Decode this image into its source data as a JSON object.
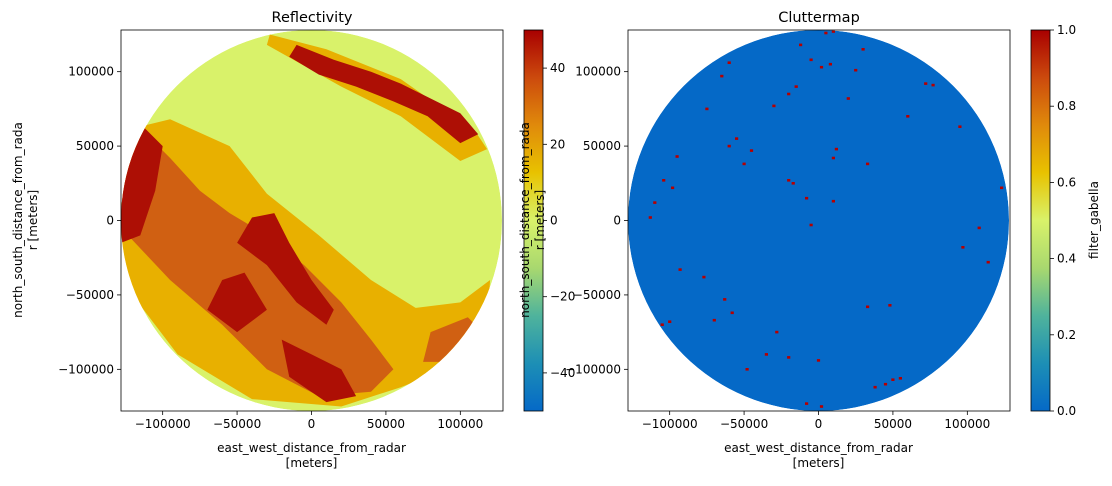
{
  "chart_data": [
    {
      "type": "heatmap",
      "title": "Reflectivity",
      "xlabel": "east_west_distance_from_radar\n[meters]",
      "ylabel": "north_south_distance_from_rada\nr [meters]",
      "x_ticks": [
        -100000,
        -50000,
        0,
        50000,
        100000
      ],
      "y_ticks": [
        100000,
        50000,
        0,
        -50000,
        -100000
      ],
      "xlim": [
        -128000,
        128000
      ],
      "ylim": [
        -128000,
        128000
      ],
      "radar_range": 128000,
      "colorbar": {
        "min": -50,
        "max": 50,
        "ticks": [
          40,
          20,
          0,
          -20,
          -40
        ],
        "colormap": [
          "#0569c7",
          "#1d8fb5",
          "#4fb39c",
          "#a8d86f",
          "#d9f26a",
          "#e8c200",
          "#e08a0b",
          "#cc4a0d",
          "#a80000"
        ],
        "label": ""
      },
      "field_colors": {
        "background": "#d9f26a",
        "moderate": "#e8b000",
        "strong": "#d06012",
        "intense": "#ad0f05"
      },
      "echo_regions": [
        {
          "intensity": "moderate",
          "points": [
            [
              -128000,
              60000
            ],
            [
              -95000,
              68000
            ],
            [
              -55000,
              50000
            ],
            [
              -30000,
              18000
            ],
            [
              5000,
              -10000
            ],
            [
              40000,
              -40000
            ],
            [
              80000,
              -65000
            ],
            [
              110000,
              -80000
            ],
            [
              90000,
              -100000
            ],
            [
              60000,
              -112000
            ],
            [
              20000,
              -125000
            ],
            [
              -40000,
              -120000
            ],
            [
              -90000,
              -90000
            ],
            [
              -128000,
              -40000
            ]
          ]
        },
        {
          "intensity": "strong",
          "points": [
            [
              -128000,
              40000
            ],
            [
              -108000,
              55000
            ],
            [
              -95000,
              42000
            ],
            [
              -75000,
              20000
            ],
            [
              -55000,
              5000
            ],
            [
              -30000,
              -10000
            ],
            [
              -5000,
              -30000
            ],
            [
              20000,
              -55000
            ],
            [
              40000,
              -80000
            ],
            [
              55000,
              -100000
            ],
            [
              40000,
              -115000
            ],
            [
              5000,
              -118000
            ],
            [
              -30000,
              -100000
            ],
            [
              -60000,
              -70000
            ],
            [
              -95000,
              -40000
            ],
            [
              -128000,
              -5000
            ]
          ]
        },
        {
          "intensity": "intense",
          "points": [
            [
              -128000,
              35000
            ],
            [
              -112000,
              62000
            ],
            [
              -100000,
              50000
            ],
            [
              -105000,
              20000
            ],
            [
              -115000,
              -10000
            ],
            [
              -128000,
              -15000
            ]
          ]
        },
        {
          "intensity": "intense",
          "points": [
            [
              -40000,
              2000
            ],
            [
              -25000,
              5000
            ],
            [
              -15000,
              -15000
            ],
            [
              0,
              -40000
            ],
            [
              15000,
              -60000
            ],
            [
              10000,
              -70000
            ],
            [
              -10000,
              -55000
            ],
            [
              -30000,
              -30000
            ],
            [
              -50000,
              -15000
            ]
          ]
        },
        {
          "intensity": "intense",
          "points": [
            [
              -60000,
              -40000
            ],
            [
              -45000,
              -35000
            ],
            [
              -30000,
              -60000
            ],
            [
              -50000,
              -75000
            ],
            [
              -70000,
              -60000
            ]
          ]
        },
        {
          "intensity": "intense",
          "points": [
            [
              -20000,
              -80000
            ],
            [
              0,
              -90000
            ],
            [
              20000,
              -100000
            ],
            [
              30000,
              -118000
            ],
            [
              10000,
              -122000
            ],
            [
              -15000,
              -105000
            ]
          ]
        },
        {
          "intensity": "moderate",
          "points": [
            [
              -28000,
              125000
            ],
            [
              10000,
              115000
            ],
            [
              60000,
              95000
            ],
            [
              110000,
              60000
            ],
            [
              118000,
              48000
            ],
            [
              100000,
              40000
            ],
            [
              60000,
              70000
            ],
            [
              20000,
              90000
            ],
            [
              -30000,
              118000
            ]
          ]
        },
        {
          "intensity": "intense",
          "points": [
            [
              -10000,
              118000
            ],
            [
              15000,
              108000
            ],
            [
              40000,
              100000
            ],
            [
              60000,
              92000
            ],
            [
              80000,
              82000
            ],
            [
              100000,
              72000
            ],
            [
              112000,
              58000
            ],
            [
              100000,
              52000
            ],
            [
              78000,
              70000
            ],
            [
              55000,
              80000
            ],
            [
              30000,
              90000
            ],
            [
              5000,
              98000
            ],
            [
              -15000,
              110000
            ]
          ]
        },
        {
          "intensity": "moderate",
          "points": [
            [
              60000,
              -60000
            ],
            [
              100000,
              -55000
            ],
            [
              120000,
              -40000
            ],
            [
              118000,
              -70000
            ],
            [
              100000,
              -95000
            ],
            [
              70000,
              -105000
            ],
            [
              50000,
              -85000
            ]
          ]
        },
        {
          "intensity": "strong",
          "points": [
            [
              80000,
              -75000
            ],
            [
              105000,
              -65000
            ],
            [
              115000,
              -75000
            ],
            [
              95000,
              -95000
            ],
            [
              75000,
              -95000
            ]
          ]
        }
      ]
    },
    {
      "type": "heatmap",
      "title": "Cluttermap",
      "xlabel": "east_west_distance_from_radar\n[meters]",
      "ylabel": "north_south_distance_from_rada\nr [meters]",
      "x_ticks": [
        -100000,
        -50000,
        0,
        50000,
        100000
      ],
      "y_ticks": [
        100000,
        50000,
        0,
        -50000,
        -100000
      ],
      "xlim": [
        -128000,
        128000
      ],
      "ylim": [
        -128000,
        128000
      ],
      "radar_range": 128000,
      "colorbar": {
        "min": 0,
        "max": 1,
        "ticks": [
          "1.0",
          "0.8",
          "0.6",
          "0.4",
          "0.2",
          "0.0"
        ],
        "colormap": [
          "#0569c7",
          "#1d8fb5",
          "#4fb39c",
          "#a8d86f",
          "#d9f26a",
          "#e8c200",
          "#e08a0b",
          "#cc4a0d",
          "#a80000"
        ],
        "label": "filter_gabella"
      },
      "field_colors": {
        "background": "#0569c7",
        "clutter": "#b60000"
      },
      "clutter_points": [
        [
          10000,
          127000
        ],
        [
          5000,
          126000
        ],
        [
          -12000,
          118000
        ],
        [
          30000,
          115000
        ],
        [
          -5000,
          108000
        ],
        [
          2000,
          103000
        ],
        [
          8000,
          105000
        ],
        [
          25000,
          101000
        ],
        [
          -60000,
          106000
        ],
        [
          -65000,
          97000
        ],
        [
          -15000,
          90000
        ],
        [
          -20000,
          85000
        ],
        [
          72000,
          92000
        ],
        [
          77000,
          91000
        ],
        [
          -30000,
          77000
        ],
        [
          20000,
          82000
        ],
        [
          -75000,
          75000
        ],
        [
          60000,
          70000
        ],
        [
          95000,
          63000
        ],
        [
          -55000,
          55000
        ],
        [
          -60000,
          50000
        ],
        [
          -45000,
          47000
        ],
        [
          10000,
          42000
        ],
        [
          12000,
          48000
        ],
        [
          -95000,
          43000
        ],
        [
          33000,
          38000
        ],
        [
          -50000,
          38000
        ],
        [
          -98000,
          22000
        ],
        [
          -104000,
          27000
        ],
        [
          -20000,
          27000
        ],
        [
          -17000,
          25000
        ],
        [
          123000,
          22000
        ],
        [
          -8000,
          15000
        ],
        [
          10000,
          13000
        ],
        [
          -110000,
          12000
        ],
        [
          -113000,
          2000
        ],
        [
          108000,
          -5000
        ],
        [
          -5000,
          -3000
        ],
        [
          97000,
          -18000
        ],
        [
          114000,
          -28000
        ],
        [
          -93000,
          -33000
        ],
        [
          -77000,
          -38000
        ],
        [
          -63000,
          -53000
        ],
        [
          -58000,
          -62000
        ],
        [
          -70000,
          -67000
        ],
        [
          48000,
          -57000
        ],
        [
          33000,
          -58000
        ],
        [
          -100000,
          -68000
        ],
        [
          -20000,
          -92000
        ],
        [
          0,
          -94000
        ],
        [
          -28000,
          -75000
        ],
        [
          -35000,
          -90000
        ],
        [
          -48000,
          -100000
        ],
        [
          38000,
          -112000
        ],
        [
          45000,
          -110000
        ],
        [
          50000,
          -107000
        ],
        [
          55000,
          -106000
        ],
        [
          2000,
          -125000
        ],
        [
          -8000,
          -123000
        ],
        [
          -105000,
          -70000
        ]
      ]
    }
  ]
}
